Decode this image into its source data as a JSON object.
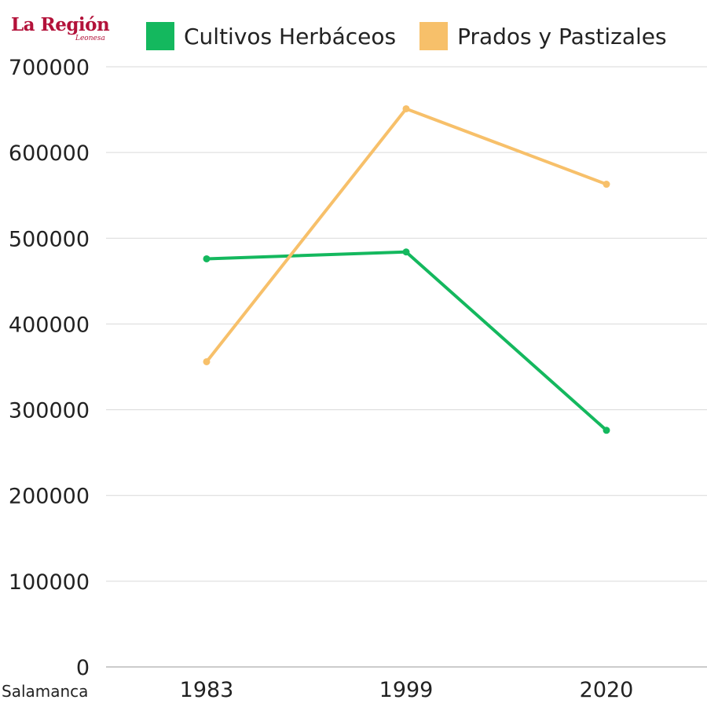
{
  "branding": {
    "logo_main": "La Región",
    "logo_sub": "Leonesa"
  },
  "colors": {
    "series_1": "#14b85e",
    "series_2": "#f7c06a",
    "grid": "#d9d9d9",
    "axis": "#bbbbbb",
    "logo": "#b3123a"
  },
  "chart_data": {
    "type": "line",
    "title": "",
    "xlabel": "Salamanca",
    "ylabel": "",
    "categories": [
      "1983",
      "1999",
      "2020"
    ],
    "ylim": [
      0,
      700000
    ],
    "yticks": [
      0,
      100000,
      200000,
      300000,
      400000,
      500000,
      600000,
      700000
    ],
    "grid": true,
    "legend_position": "top",
    "series": [
      {
        "name": "Cultivos Herbáceos",
        "color": "#14b85e",
        "values": [
          476000,
          484000,
          276000
        ]
      },
      {
        "name": "Prados y Pastizales",
        "color": "#f7c06a",
        "values": [
          356000,
          651000,
          563000
        ]
      }
    ]
  }
}
